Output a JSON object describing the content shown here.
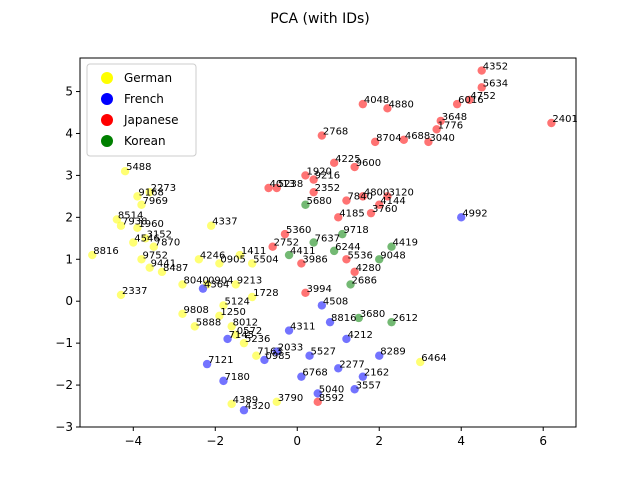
{
  "chart_data": {
    "type": "scatter",
    "title": "PCA (with IDs)",
    "xlabel": "",
    "ylabel": "",
    "xlim": [
      -5.3,
      6.8
    ],
    "ylim": [
      -3,
      5.8
    ],
    "xticks": [
      -4,
      -2,
      0,
      2,
      4,
      6
    ],
    "yticks": [
      -3,
      -2,
      -1,
      0,
      1,
      2,
      3,
      4,
      5
    ],
    "xtick_labels": [
      "−4",
      "−2",
      "0",
      "2",
      "4",
      "6"
    ],
    "ytick_labels": [
      "−3",
      "−2",
      "−1",
      "0",
      "1",
      "2",
      "3",
      "4",
      "5"
    ],
    "grid": false,
    "legend": {
      "placement": "top-left"
    },
    "series": [
      {
        "name": "German",
        "color": "#ffff00",
        "points": [
          {
            "x": -4.2,
            "y": 3.1,
            "id": "5488"
          },
          {
            "x": -3.9,
            "y": 2.5,
            "id": "9168"
          },
          {
            "x": -3.6,
            "y": 2.6,
            "id": "2273"
          },
          {
            "x": -3.8,
            "y": 2.3,
            "id": "7969"
          },
          {
            "x": -4.4,
            "y": 1.95,
            "id": "8514"
          },
          {
            "x": -4.3,
            "y": 1.8,
            "id": "7938"
          },
          {
            "x": -3.9,
            "y": 1.75,
            "id": "1960"
          },
          {
            "x": -2.1,
            "y": 1.8,
            "id": "4337"
          },
          {
            "x": -3.7,
            "y": 1.5,
            "id": "3152"
          },
          {
            "x": -4.0,
            "y": 1.4,
            "id": "4546"
          },
          {
            "x": -3.5,
            "y": 1.3,
            "id": "7870"
          },
          {
            "x": -5.0,
            "y": 1.1,
            "id": "8816"
          },
          {
            "x": -3.8,
            "y": 1.0,
            "id": "9752"
          },
          {
            "x": -2.4,
            "y": 1.0,
            "id": "4246"
          },
          {
            "x": -3.6,
            "y": 0.8,
            "id": "9441"
          },
          {
            "x": -3.3,
            "y": 0.7,
            "id": "8487"
          },
          {
            "x": -1.9,
            "y": 0.9,
            "id": "0905"
          },
          {
            "x": -4.3,
            "y": 0.15,
            "id": "2337"
          },
          {
            "x": -2.8,
            "y": 0.4,
            "id": "8040"
          },
          {
            "x": -2.2,
            "y": 0.4,
            "id": "0904"
          },
          {
            "x": -1.5,
            "y": 0.4,
            "id": "9213"
          },
          {
            "x": -1.1,
            "y": 0.1,
            "id": "1728"
          },
          {
            "x": -1.8,
            "y": -0.1,
            "id": "5124"
          },
          {
            "x": -1.9,
            "y": -0.35,
            "id": "1250"
          },
          {
            "x": -2.8,
            "y": -0.3,
            "id": "9808"
          },
          {
            "x": -2.5,
            "y": -0.6,
            "id": "5888"
          },
          {
            "x": -1.6,
            "y": -0.6,
            "id": "8012"
          },
          {
            "x": -1.5,
            "y": -0.8,
            "id": "0572"
          },
          {
            "x": -1.3,
            "y": -1.0,
            "id": "5236"
          },
          {
            "x": -1.0,
            "y": -1.3,
            "id": "7163"
          },
          {
            "x": -1.6,
            "y": -2.45,
            "id": "4389"
          },
          {
            "x": -0.5,
            "y": -2.4,
            "id": "3790"
          },
          {
            "x": 3.0,
            "y": -1.45,
            "id": "6464"
          },
          {
            "x": -1.4,
            "y": 1.1,
            "id": "1411"
          },
          {
            "x": -1.1,
            "y": 0.9,
            "id": "5504"
          }
        ]
      },
      {
        "name": "French",
        "color": "#0000ff",
        "points": [
          {
            "x": 4.0,
            "y": 2.0,
            "id": "4992"
          },
          {
            "x": -2.3,
            "y": 0.3,
            "id": "4364"
          },
          {
            "x": -2.2,
            "y": -1.5,
            "id": "7121"
          },
          {
            "x": -1.8,
            "y": -1.9,
            "id": "7180"
          },
          {
            "x": -1.3,
            "y": -2.6,
            "id": "4320"
          },
          {
            "x": -1.7,
            "y": -0.9,
            "id": "7145"
          },
          {
            "x": -0.5,
            "y": -1.2,
            "id": "2033"
          },
          {
            "x": 0.5,
            "y": -2.2,
            "id": "5040"
          },
          {
            "x": 1.4,
            "y": -2.1,
            "id": "3557"
          },
          {
            "x": 1.6,
            "y": -1.8,
            "id": "2162"
          },
          {
            "x": 2.0,
            "y": -1.3,
            "id": "8289"
          },
          {
            "x": 1.2,
            "y": -0.9,
            "id": "4212"
          },
          {
            "x": 0.1,
            "y": -1.8,
            "id": "6768"
          },
          {
            "x": -0.2,
            "y": -0.7,
            "id": "4311"
          },
          {
            "x": 0.8,
            "y": -0.5,
            "id": "8816"
          },
          {
            "x": 0.3,
            "y": -1.3,
            "id": "5527"
          },
          {
            "x": -0.8,
            "y": -1.4,
            "id": "0985"
          },
          {
            "x": 0.6,
            "y": -0.1,
            "id": "4508"
          },
          {
            "x": 1.0,
            "y": -1.6,
            "id": "2277"
          }
        ]
      },
      {
        "name": "Japanese",
        "color": "#ff0000",
        "points": [
          {
            "x": 4.5,
            "y": 5.5,
            "id": "4352"
          },
          {
            "x": 4.5,
            "y": 5.1,
            "id": "5634"
          },
          {
            "x": 4.2,
            "y": 4.8,
            "id": "4752"
          },
          {
            "x": 3.9,
            "y": 4.7,
            "id": "6016"
          },
          {
            "x": 1.6,
            "y": 4.7,
            "id": "4048"
          },
          {
            "x": 2.2,
            "y": 4.6,
            "id": "4880"
          },
          {
            "x": 3.5,
            "y": 4.3,
            "id": "3648"
          },
          {
            "x": 3.4,
            "y": 4.1,
            "id": "1776"
          },
          {
            "x": 6.2,
            "y": 4.25,
            "id": "2401"
          },
          {
            "x": 3.2,
            "y": 3.8,
            "id": "3040"
          },
          {
            "x": 2.6,
            "y": 3.85,
            "id": "4688"
          },
          {
            "x": 1.9,
            "y": 3.8,
            "id": "8704"
          },
          {
            "x": 0.6,
            "y": 3.95,
            "id": "2768"
          },
          {
            "x": 0.9,
            "y": 3.3,
            "id": "4225"
          },
          {
            "x": 1.4,
            "y": 3.2,
            "id": "9600"
          },
          {
            "x": 0.2,
            "y": 3.0,
            "id": "1920"
          },
          {
            "x": 0.4,
            "y": 2.9,
            "id": "9216"
          },
          {
            "x": -0.7,
            "y": 2.7,
            "id": "4013"
          },
          {
            "x": -0.5,
            "y": 2.7,
            "id": "5238"
          },
          {
            "x": 0.4,
            "y": 2.6,
            "id": "2352"
          },
          {
            "x": 2.2,
            "y": 2.5,
            "id": "3120"
          },
          {
            "x": 1.6,
            "y": 2.5,
            "id": "4800"
          },
          {
            "x": 1.2,
            "y": 2.4,
            "id": "7840"
          },
          {
            "x": 2.0,
            "y": 2.3,
            "id": "4144"
          },
          {
            "x": 1.8,
            "y": 2.1,
            "id": "3760"
          },
          {
            "x": 1.0,
            "y": 2.0,
            "id": "4185"
          },
          {
            "x": -0.3,
            "y": 1.6,
            "id": "5360"
          },
          {
            "x": 0.1,
            "y": 0.9,
            "id": "3986"
          },
          {
            "x": 1.4,
            "y": 0.7,
            "id": "4280"
          },
          {
            "x": 0.2,
            "y": 0.2,
            "id": "3994"
          },
          {
            "x": 0.5,
            "y": -2.4,
            "id": "8592"
          },
          {
            "x": -0.6,
            "y": 1.3,
            "id": "2752"
          },
          {
            "x": 1.2,
            "y": 1.0,
            "id": "5536"
          }
        ]
      },
      {
        "name": "Korean",
        "color": "#008000",
        "points": [
          {
            "x": 0.2,
            "y": 2.3,
            "id": "5680"
          },
          {
            "x": 2.3,
            "y": 1.3,
            "id": "4419"
          },
          {
            "x": 2.0,
            "y": 1.0,
            "id": "9048"
          },
          {
            "x": 1.1,
            "y": 1.6,
            "id": "9718"
          },
          {
            "x": 0.4,
            "y": 1.4,
            "id": "7637"
          },
          {
            "x": 2.3,
            "y": -0.5,
            "id": "2612"
          },
          {
            "x": 1.5,
            "y": -0.4,
            "id": "3680"
          },
          {
            "x": 0.9,
            "y": 1.2,
            "id": "6244"
          },
          {
            "x": 1.3,
            "y": 0.4,
            "id": "2686"
          },
          {
            "x": -0.2,
            "y": 1.1,
            "id": "4411"
          }
        ]
      }
    ]
  }
}
